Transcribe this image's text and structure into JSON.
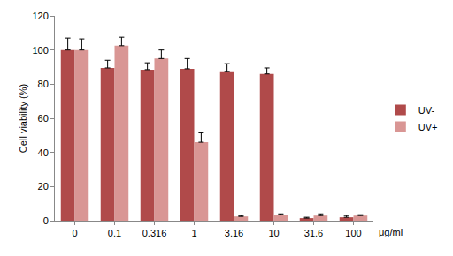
{
  "chart_data": {
    "type": "bar",
    "ylabel": "Cell viability (%)",
    "xlabel": "μg/ml",
    "categories": [
      "0",
      "0.1",
      "0.316",
      "1",
      "3.16",
      "10",
      "31.6",
      "100"
    ],
    "series": [
      {
        "name": "UV-",
        "color": "#b04a4a",
        "values": [
          100,
          89.5,
          88.5,
          89,
          87.5,
          86,
          1.5,
          2
        ],
        "errors": [
          7,
          4.5,
          4,
          6,
          4.5,
          3.5,
          0.5,
          1
        ]
      },
      {
        "name": "UV+",
        "color": "#d99694",
        "values": [
          100,
          102.5,
          95,
          46,
          2.5,
          3.5,
          3,
          3
        ],
        "errors": [
          6.5,
          5,
          5,
          5.5,
          0.5,
          0.5,
          1,
          0.5
        ]
      }
    ],
    "ylim": [
      0,
      120
    ],
    "yticks": [
      0,
      20,
      40,
      60,
      80,
      100,
      120
    ],
    "grid": false,
    "legend": "right"
  }
}
